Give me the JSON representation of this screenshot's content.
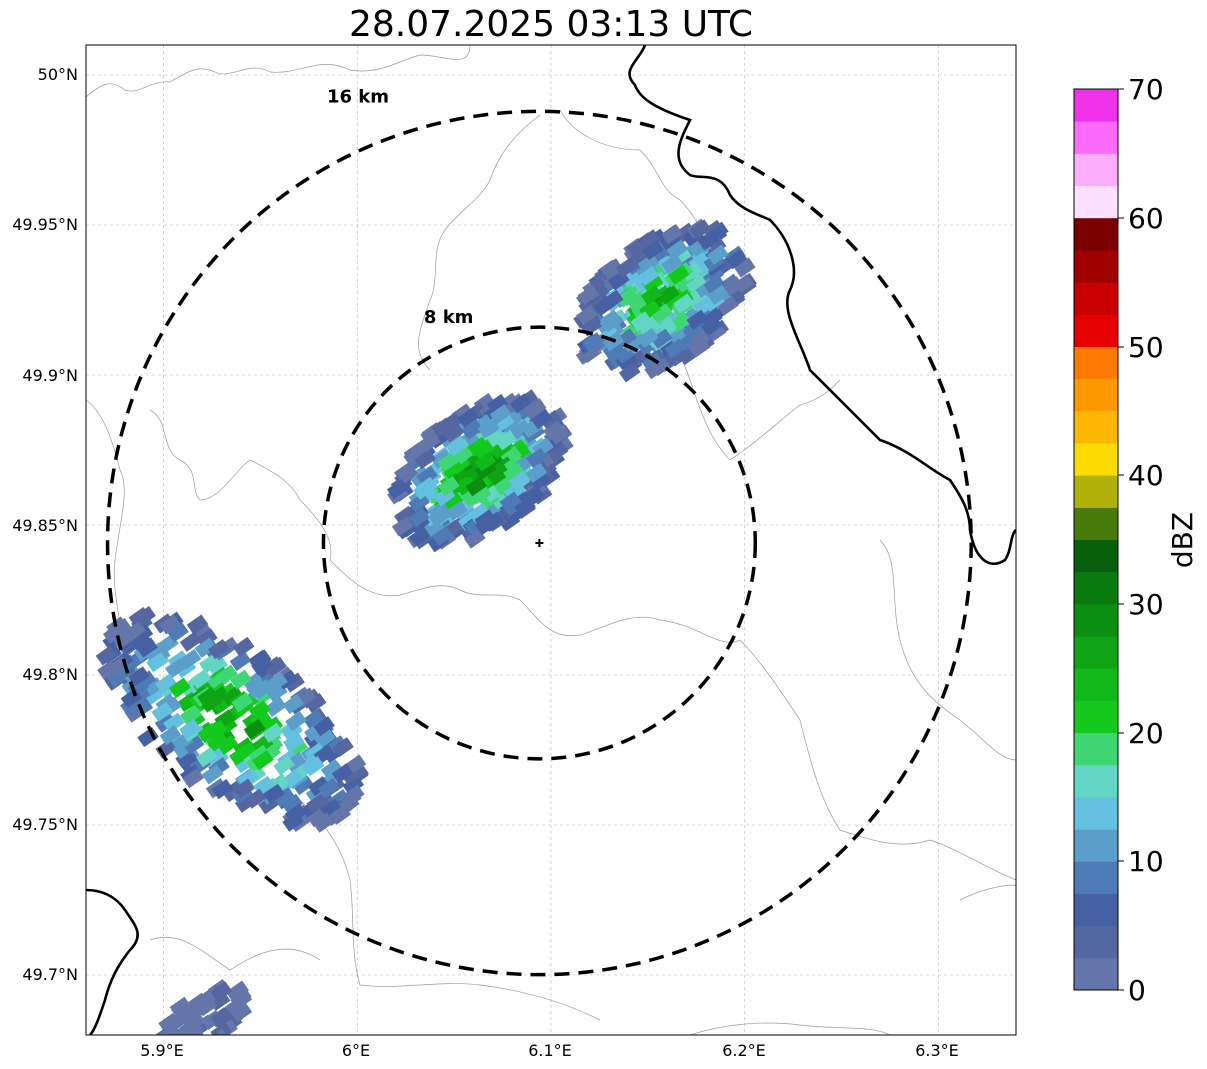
{
  "title": "28.07.2025 03:13 UTC",
  "map": {
    "lon_range": [
      5.86,
      6.34
    ],
    "lat_range": [
      49.68,
      50.01
    ],
    "x_ticks": [
      {
        "value": 5.9,
        "label": "5.9°E"
      },
      {
        "value": 6.0,
        "label": "6°E"
      },
      {
        "value": 6.1,
        "label": "6.1°E"
      },
      {
        "value": 6.2,
        "label": "6.2°E"
      },
      {
        "value": 6.3,
        "label": "6.3°E"
      }
    ],
    "y_ticks": [
      {
        "value": 50.0,
        "label": "50°N"
      },
      {
        "value": 49.95,
        "label": "49.95°N"
      },
      {
        "value": 49.9,
        "label": "49.9°N"
      },
      {
        "value": 49.85,
        "label": "49.85°N"
      },
      {
        "value": 49.8,
        "label": "49.8°N"
      },
      {
        "value": 49.75,
        "label": "49.75°N"
      },
      {
        "value": 49.7,
        "label": "49.7°N"
      }
    ],
    "grid": true,
    "radar_center": {
      "lon": 6.094,
      "lat": 49.844
    },
    "range_rings": [
      {
        "radius_km": 8,
        "label": "8 km"
      },
      {
        "radius_km": 16,
        "label": "16 km"
      }
    ]
  },
  "colorbar": {
    "label": "dBZ",
    "min": 0,
    "max": 70,
    "step": 2.5,
    "ticks": [
      "0",
      "10",
      "20",
      "30",
      "40",
      "50",
      "60",
      "70"
    ],
    "colors": [
      "#6475aa",
      "#5567a0",
      "#4661a3",
      "#4e7bb5",
      "#5a9ec9",
      "#64c0df",
      "#62d5c4",
      "#3fd773",
      "#13c91d",
      "#10b818",
      "#0ea515",
      "#0b8f12",
      "#097a0f",
      "#075f0b",
      "#487a0a",
      "#b0b20a",
      "#fddc03",
      "#feb803",
      "#ff9902",
      "#ff7a01",
      "#e60000",
      "#c80000",
      "#a00000",
      "#7a0000",
      "#fce0fd",
      "#fcaefc",
      "#fc6afc",
      "#f032ea"
    ]
  },
  "echoes": [
    {
      "name": "central-cell",
      "lon": 6.063,
      "lat": 49.868,
      "peak_dbz": 32
    },
    {
      "name": "northeast-cell",
      "lon": 6.158,
      "lat": 49.925,
      "peak_dbz": 27
    },
    {
      "name": "southwest-cell",
      "lon": 5.935,
      "lat": 49.785,
      "peak_dbz": 30
    },
    {
      "name": "far-southwest-cell",
      "lon": 5.92,
      "lat": 49.685,
      "peak_dbz": 2
    }
  ]
}
